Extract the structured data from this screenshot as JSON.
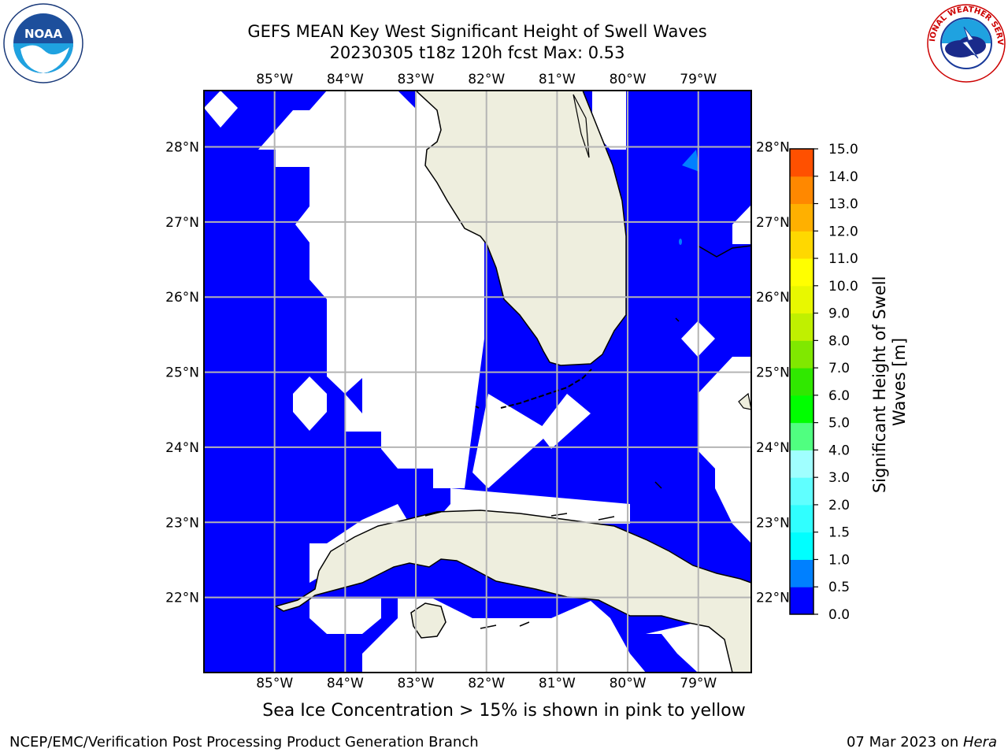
{
  "header": {
    "title_line1": "GEFS MEAN Key West Significant Height of Swell Waves",
    "title_line2": "20230305 t18z 120h fcst   Max: 0.53"
  },
  "logos": {
    "left": {
      "icon": "noaa-logo",
      "text": "NOAA"
    },
    "right": {
      "icon": "nws-logo",
      "text": "NATIONAL WEATHER SERVICE"
    }
  },
  "map": {
    "lon_labels": [
      "85°W",
      "84°W",
      "83°W",
      "82°W",
      "81°W",
      "80°W",
      "79°W"
    ],
    "lat_labels": [
      "28°N",
      "27°N",
      "26°N",
      "25°N",
      "24°N",
      "23°N",
      "22°N"
    ],
    "lon_range": [
      -86.0,
      -78.25
    ],
    "lat_range": [
      21.0,
      28.75
    ],
    "ocean_color": "#0000ff",
    "land_color": "#eeeede",
    "nodata_color": "#ffffff"
  },
  "colorbar": {
    "label": "Significant Height of Swell Waves [m]",
    "tick_labels": [
      "15.0",
      "14.0",
      "13.0",
      "12.0",
      "11.0",
      "10.0",
      "9.0",
      "8.0",
      "7.0",
      "6.0",
      "5.0",
      "4.0",
      "3.0",
      "2.0",
      "1.5",
      "1.0",
      "0.5",
      "0.0"
    ],
    "bands_bottom_to_top": [
      "#0000ff",
      "#0080ff",
      "#00ffff",
      "#30ffff",
      "#60ffff",
      "#a0ffff",
      "#50ff80",
      "#00ff00",
      "#30e800",
      "#80e800",
      "#c0f000",
      "#e8f800",
      "#ffff00",
      "#ffd800",
      "#ffb000",
      "#ff8800",
      "#ff5000",
      "#ff2000",
      "#ff0000"
    ]
  },
  "footer": {
    "note": "Sea Ice Concentration > 15% is shown in pink to yellow",
    "left": "NCEP/EMC/Verification Post Processing Product Generation Branch",
    "right_date": "07 Mar 2023 on ",
    "right_host": "Hera"
  }
}
